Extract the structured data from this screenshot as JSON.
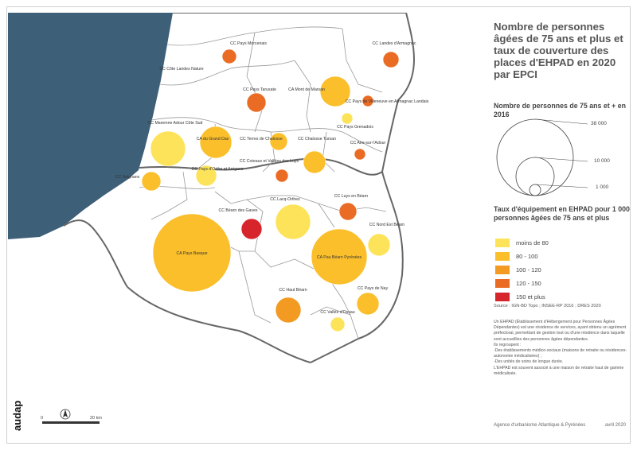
{
  "title": "Nombre de personnes âgées de 75 ans et plus et taux de couverture des places d'EHPAD en 2020 par EPCI",
  "size_legend": {
    "title": "Nombre de personnes de 75 ans et + en 2016",
    "values": [
      "38 000",
      "10 000",
      "1 000"
    ]
  },
  "rate_legend": {
    "title": "Taux d'équipement en EHPAD pour 1 000 personnes âgées de 75 ans et plus",
    "classes": [
      {
        "label": "moins de 80",
        "color": "#fde35a"
      },
      {
        "label": "80 - 100",
        "color": "#fbbf2c"
      },
      {
        "label": "100 - 120",
        "color": "#f39a22"
      },
      {
        "label": "120 - 150",
        "color": "#ea6b23"
      },
      {
        "label": "150 et plus",
        "color": "#d7262b"
      }
    ]
  },
  "source": "Source : IGN-BD Topo ; INSEE-RP 2016 ; DRES 2020",
  "note": [
    "Un EHPAD (Établissement d'Hébergement pour Personnes Âgées Dépendantes) est une résidence de services, ayant obtenu un agrément préfectoral, permettant de gestion tout ou d'une résidence dans laquelle sont accueillies des personnes âgées dépendantes.",
    "Ils regroupent :",
    "-Des établissements médico-sociaux (maisons de retraite ou résidences-autonomie médicalisées) ;",
    "-Des unités de soins de longue durée.",
    "L'EHPAD est souvent associé à une maison de retraite haut de gamme médicalisée."
  ],
  "agency": "Agence d'urbanisme Atlantique & Pyrénées",
  "date": "avril 2020",
  "logo_text": "audap",
  "scale_bar": {
    "start": "0",
    "end": "20 km"
  },
  "epci": [
    {
      "label": "CC Pays Morcenais",
      "class": 3
    },
    {
      "label": "CC Landes d'Armagnac",
      "class": 3
    },
    {
      "label": "CC Côte Landes Nature",
      "class": null
    },
    {
      "label": "CA Mont de Marsan",
      "class": 1
    },
    {
      "label": "CC Pays Tarusate",
      "class": 3
    },
    {
      "label": "CC Pays de Villeneuve en Armagnac Landais",
      "class": 3
    },
    {
      "label": "CC Maremne Adour Côte Sud",
      "class": 0
    },
    {
      "label": "CA du Grand Dax",
      "class": 1
    },
    {
      "label": "CC Terres de Chalosse",
      "class": 1
    },
    {
      "label": "CC Chalosse Tursan",
      "class": 1
    },
    {
      "label": "CC Pays Grenadois",
      "class": 0
    },
    {
      "label": "CC Aire-sur-l'Adour",
      "class": 3
    },
    {
      "label": "CC Coteaux et Vallées des Luys",
      "class": 4
    },
    {
      "label": "CC Seignanx",
      "class": 1
    },
    {
      "label": "CC Pays d'Orthe et Arrigans",
      "class": 0
    },
    {
      "label": "CC Lacq-Orthez",
      "class": 0
    },
    {
      "label": "CC Luys en Béarn",
      "class": 3
    },
    {
      "label": "CC Béarn des Gaves",
      "class": 4
    },
    {
      "label": "CC Nord Est Béarn",
      "class": 0
    },
    {
      "label": "CA Pays Basque",
      "class": 1
    },
    {
      "label": "CA Pau Béarn Pyrénées",
      "class": 1
    },
    {
      "label": "CC Haut Béarn",
      "class": 2
    },
    {
      "label": "CC Pays de Nay",
      "class": 1
    },
    {
      "label": "CC Vallée d'Ossau",
      "class": 0
    }
  ]
}
